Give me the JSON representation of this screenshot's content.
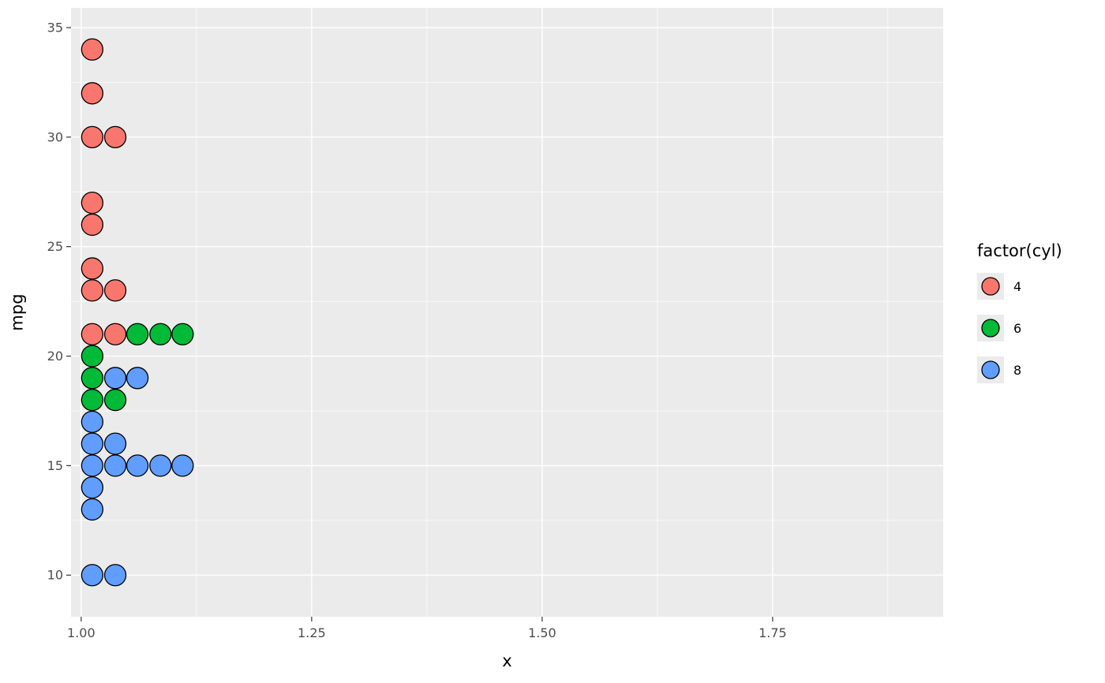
{
  "chart_data": {
    "type": "scatter",
    "title": "",
    "xlabel": "x",
    "ylabel": "mpg",
    "xlim": [
      0.989,
      1.935
    ],
    "ylim": [
      8.1,
      35.9
    ],
    "x_major_ticks": [
      1.0,
      1.25,
      1.5,
      1.75
    ],
    "x_tick_labels": [
      "1.00",
      "1.25",
      "1.50",
      "1.75"
    ],
    "x_minor_ticks": [
      1.125,
      1.375,
      1.625,
      1.875
    ],
    "y_major_ticks": [
      10,
      15,
      20,
      25,
      30,
      35
    ],
    "y_tick_labels": [
      "10",
      "15",
      "20",
      "25",
      "30",
      "35"
    ],
    "y_minor_ticks": [
      12.5,
      17.5,
      22.5,
      27.5,
      32.5
    ],
    "grid": "on",
    "point_radius_px": 13.5,
    "colors": {
      "panel_bg": "#EBEBEB",
      "grid": "#FFFFFF",
      "tick_text": "#4D4D4D",
      "tick_mark": "#333333",
      "axis_title": "#000000",
      "point_stroke": "#000000",
      "legend_key_bg": "#EBEBEB"
    },
    "legend": {
      "title": "factor(cyl)",
      "position": "right",
      "entries": [
        {
          "label": "4",
          "color": "#F8766D"
        },
        {
          "label": "6",
          "color": "#00BA38"
        },
        {
          "label": "8",
          "color": "#619CFF"
        }
      ]
    },
    "series": [
      {
        "name": "4",
        "color": "#F8766D",
        "points": [
          [
            1.012,
            34
          ],
          [
            1.012,
            32
          ],
          [
            1.012,
            30
          ],
          [
            1.037,
            30
          ],
          [
            1.012,
            27
          ],
          [
            1.012,
            26
          ],
          [
            1.012,
            24
          ],
          [
            1.012,
            23
          ],
          [
            1.037,
            23
          ],
          [
            1.012,
            21
          ],
          [
            1.037,
            21
          ]
        ]
      },
      {
        "name": "6",
        "color": "#00BA38",
        "points": [
          [
            1.061,
            21
          ],
          [
            1.086,
            21
          ],
          [
            1.11,
            21
          ],
          [
            1.012,
            20
          ],
          [
            1.012,
            19
          ],
          [
            1.012,
            18
          ],
          [
            1.037,
            18
          ]
        ]
      },
      {
        "name": "8",
        "color": "#619CFF",
        "points": [
          [
            1.037,
            19
          ],
          [
            1.061,
            19
          ],
          [
            1.012,
            17
          ],
          [
            1.012,
            16
          ],
          [
            1.037,
            16
          ],
          [
            1.012,
            15
          ],
          [
            1.037,
            15
          ],
          [
            1.061,
            15
          ],
          [
            1.086,
            15
          ],
          [
            1.11,
            15
          ],
          [
            1.012,
            14
          ],
          [
            1.012,
            13
          ],
          [
            1.012,
            10
          ],
          [
            1.037,
            10
          ]
        ]
      }
    ]
  }
}
